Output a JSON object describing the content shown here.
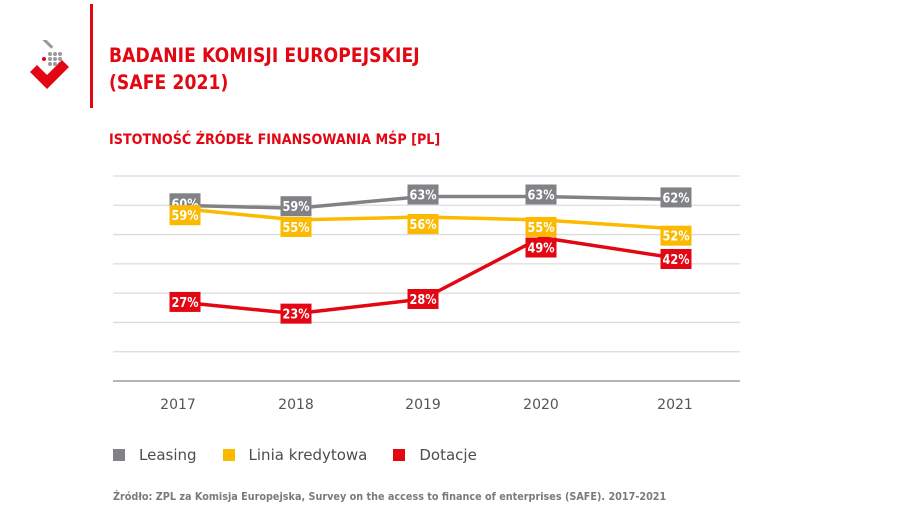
{
  "header": {
    "title_line1": "BADANIE KOMISJI EUROPEJSKIEJ",
    "title_line2": "(SAFE 2021)",
    "accent_color": "#e30613",
    "logo": "zpl-logo-icon"
  },
  "chart_data": {
    "type": "line",
    "title": "ISTOTNOŚĆ ŹRÓDEŁ FINANSOWANIA MŚP [PL]",
    "xlabel": "",
    "ylabel": "",
    "categories": [
      "2017",
      "2018",
      "2019",
      "2020",
      "2021"
    ],
    "ylim": [
      0,
      70
    ],
    "grid_step": 10,
    "grid": true,
    "y_tick_labels_visible": false,
    "legend_position": "bottom-left",
    "series": [
      {
        "name": "Leasing",
        "color": "#808285",
        "values": [
          60,
          59,
          63,
          63,
          62
        ],
        "labels": [
          "60%",
          "59%",
          "63%",
          "63%",
          "62%"
        ]
      },
      {
        "name": "Linia kredytowa",
        "color": "#fbba00",
        "values": [
          59,
          55,
          56,
          55,
          52
        ],
        "labels": [
          "59%",
          "55%",
          "56%",
          "55%",
          "52%"
        ]
      },
      {
        "name": "Dotacje",
        "color": "#e30613",
        "values": [
          27,
          23,
          28,
          49,
          42
        ],
        "labels": [
          "27%",
          "23%",
          "28%",
          "49%",
          "42%"
        ]
      }
    ]
  },
  "footer": {
    "source": "Źródło: ZPL za Komisja Europejska, Survey on the access to finance of enterprises (SAFE). 2017-2021"
  }
}
